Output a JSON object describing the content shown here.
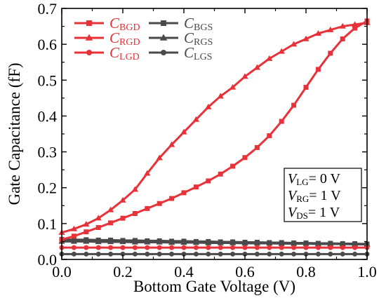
{
  "chart_data": {
    "type": "line",
    "xlabel": "Bottom Gate Voltage (V)",
    "ylabel": "Gate Capacitance (fF)",
    "xlim": [
      0.0,
      1.0
    ],
    "ylim": [
      0.0,
      0.7
    ],
    "xticks": [
      0.0,
      0.2,
      0.4,
      0.6,
      0.8,
      1.0
    ],
    "yticks": [
      0.0,
      0.1,
      0.2,
      0.3,
      0.4,
      0.5,
      0.6,
      0.7
    ],
    "xtick_labels": [
      "0.0",
      "0.2",
      "0.4",
      "0.6",
      "0.8",
      "1.0"
    ],
    "ytick_labels": [
      "0.0",
      "0.1",
      "0.2",
      "0.3",
      "0.4",
      "0.5",
      "0.6",
      "0.7"
    ],
    "grid": false,
    "legend_placement": "top-left",
    "x": [
      0.0,
      0.04,
      0.08,
      0.12,
      0.16,
      0.2,
      0.24,
      0.28,
      0.32,
      0.36,
      0.4,
      0.44,
      0.48,
      0.52,
      0.56,
      0.6,
      0.64,
      0.68,
      0.72,
      0.76,
      0.8,
      0.84,
      0.88,
      0.92,
      0.96,
      1.0
    ],
    "series": [
      {
        "name": "C",
        "sub": "BGD",
        "color": "#e8323a",
        "marker": "square",
        "values": [
          0.055,
          0.065,
          0.077,
          0.089,
          0.102,
          0.115,
          0.128,
          0.142,
          0.156,
          0.17,
          0.186,
          0.202,
          0.219,
          0.238,
          0.26,
          0.284,
          0.312,
          0.345,
          0.385,
          0.43,
          0.48,
          0.53,
          0.575,
          0.615,
          0.645,
          0.665
        ]
      },
      {
        "name": "C",
        "sub": "RGD",
        "color": "#e8323a",
        "marker": "triangle",
        "values": [
          0.075,
          0.085,
          0.098,
          0.115,
          0.138,
          0.165,
          0.195,
          0.24,
          0.283,
          0.32,
          0.355,
          0.39,
          0.425,
          0.455,
          0.48,
          0.51,
          0.535,
          0.56,
          0.58,
          0.6,
          0.615,
          0.63,
          0.64,
          0.65,
          0.655,
          0.66
        ]
      },
      {
        "name": "C",
        "sub": "LGD",
        "color": "#e8323a",
        "marker": "circle",
        "values": [
          0.033,
          0.033,
          0.033,
          0.033,
          0.033,
          0.033,
          0.033,
          0.033,
          0.033,
          0.033,
          0.033,
          0.033,
          0.033,
          0.033,
          0.033,
          0.033,
          0.033,
          0.033,
          0.033,
          0.033,
          0.033,
          0.033,
          0.033,
          0.033,
          0.033,
          0.033
        ]
      },
      {
        "name": "C",
        "sub": "BGS",
        "color": "#4a4a4a",
        "marker": "square",
        "values": [
          0.056,
          0.055,
          0.055,
          0.054,
          0.054,
          0.053,
          0.053,
          0.052,
          0.052,
          0.051,
          0.051,
          0.05,
          0.05,
          0.049,
          0.049,
          0.048,
          0.048,
          0.047,
          0.047,
          0.046,
          0.046,
          0.045,
          0.045,
          0.044,
          0.044,
          0.043
        ]
      },
      {
        "name": "C",
        "sub": "RGS",
        "color": "#4a4a4a",
        "marker": "triangle",
        "values": [
          0.05,
          0.05,
          0.05,
          0.049,
          0.049,
          0.049,
          0.048,
          0.048,
          0.048,
          0.047,
          0.047,
          0.047,
          0.046,
          0.046,
          0.046,
          0.045,
          0.045,
          0.045,
          0.044,
          0.044,
          0.044,
          0.043,
          0.043,
          0.043,
          0.042,
          0.042
        ]
      },
      {
        "name": "C",
        "sub": "LGS",
        "color": "#4a4a4a",
        "marker": "circle",
        "values": [
          0.015,
          0.015,
          0.015,
          0.015,
          0.015,
          0.015,
          0.015,
          0.015,
          0.015,
          0.015,
          0.015,
          0.015,
          0.015,
          0.015,
          0.015,
          0.015,
          0.015,
          0.015,
          0.015,
          0.015,
          0.015,
          0.015,
          0.015,
          0.015,
          0.015,
          0.015
        ]
      }
    ],
    "annotation": [
      {
        "main": "V",
        "sub": "LG",
        "rest": "= 0 V"
      },
      {
        "main": "V",
        "sub": "RG",
        "rest": "= 1 V"
      },
      {
        "main": "V",
        "sub": "DS",
        "rest": "= 1 V"
      }
    ]
  }
}
